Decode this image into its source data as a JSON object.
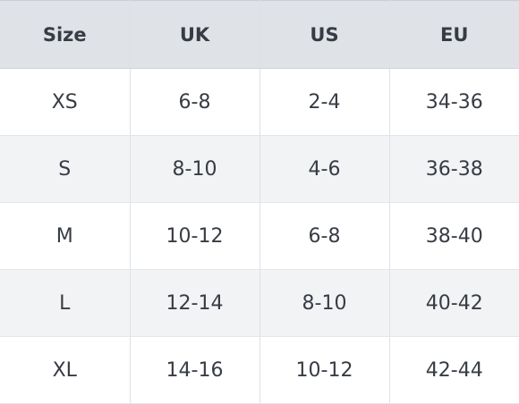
{
  "table": {
    "headers": [
      "Size",
      "UK",
      "US",
      "EU"
    ],
    "rows": [
      [
        "XS",
        "6-8",
        "2-4",
        "34-36"
      ],
      [
        "S",
        "8-10",
        "4-6",
        "36-38"
      ],
      [
        "M",
        "10-12",
        "6-8",
        "38-40"
      ],
      [
        "L",
        "12-14",
        "8-10",
        "40-42"
      ],
      [
        "XL",
        "14-16",
        "10-12",
        "42-44"
      ]
    ]
  }
}
